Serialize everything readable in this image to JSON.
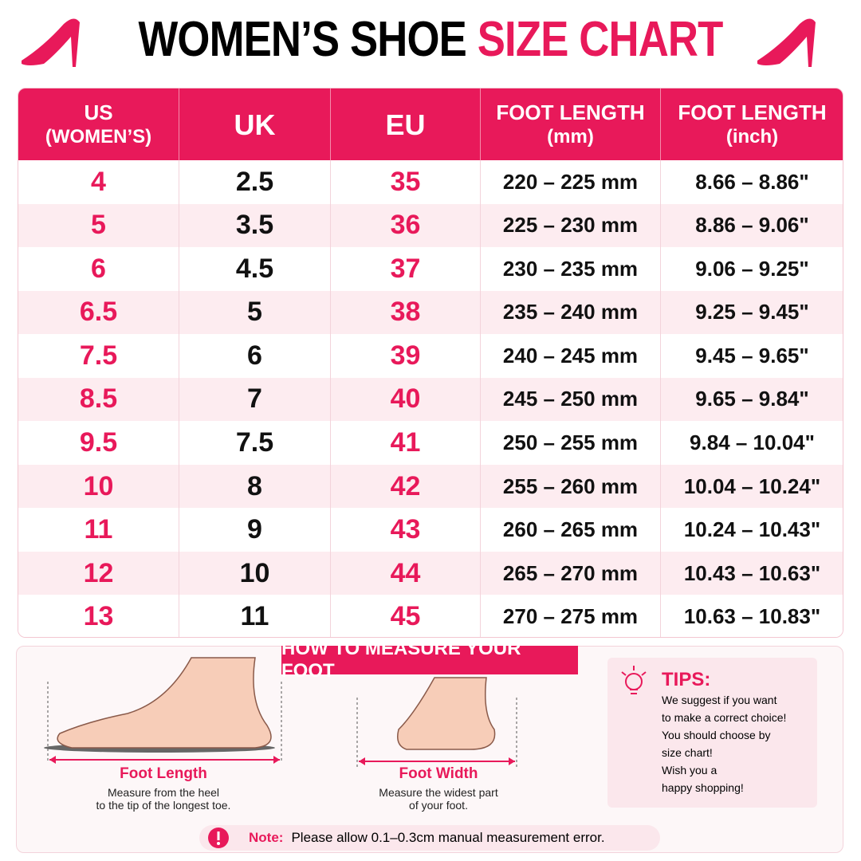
{
  "header": {
    "title_main": "WOMEN’S SHOE",
    "title_accent": "SIZE CHART"
  },
  "table": {
    "columns": [
      [
        "US",
        "(WOMEN’S)"
      ],
      [
        "UK"
      ],
      [
        "EU"
      ],
      [
        "FOOT LENGTH",
        "(mm)"
      ],
      [
        "FOOT LENGTH",
        "(inch)"
      ]
    ],
    "rows": [
      [
        "4",
        "2.5",
        "35",
        "220 – 225 mm",
        "8.66 – 8.86\""
      ],
      [
        "5",
        "3.5",
        "36",
        "225 – 230 mm",
        "8.86 – 9.06\""
      ],
      [
        "6",
        "4.5",
        "37",
        "230 – 235 mm",
        "9.06 – 9.25\""
      ],
      [
        "6.5",
        "5",
        "38",
        "235 – 240 mm",
        "9.25 – 9.45\""
      ],
      [
        "7.5",
        "6",
        "39",
        "240 – 245 mm",
        "9.45 – 9.65\""
      ],
      [
        "8.5",
        "7",
        "40",
        "245 – 250 mm",
        "9.65 – 9.84\""
      ],
      [
        "9.5",
        "7.5",
        "41",
        "250 – 255 mm",
        "9.84 – 10.04\""
      ],
      [
        "10",
        "8",
        "42",
        "255 – 260 mm",
        "10.04 – 10.24\""
      ],
      [
        "11",
        "9",
        "43",
        "260 – 265 mm",
        "10.24 – 10.43\""
      ],
      [
        "12",
        "10",
        "44",
        "265 – 270 mm",
        "10.43 – 10.63\""
      ],
      [
        "13",
        "11",
        "45",
        "270 – 275 mm",
        "10.63 – 10.83\""
      ]
    ]
  },
  "measure": {
    "title": "HOW TO MEASURE YOUR FOOT",
    "length": {
      "label": "Foot Length",
      "desc": [
        "Measure from the heel",
        "to the tip of the longest toe."
      ]
    },
    "width": {
      "label": "Foot Width",
      "desc": [
        "Measure the widest part",
        "of your foot."
      ]
    }
  },
  "tips": {
    "title": "TIPS:",
    "lines": [
      "We suggest if you want",
      "to make a correct choice!",
      "You should choose by",
      "size chart!",
      "Wish you a",
      "happy shopping!"
    ]
  },
  "note": {
    "label": "Note:",
    "text": "Please allow 0.1–0.3cm manual measurement error."
  }
}
